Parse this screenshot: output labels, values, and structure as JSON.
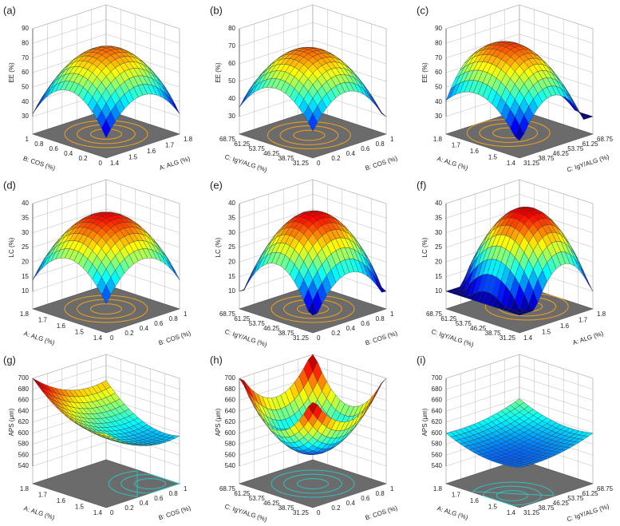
{
  "panels": [
    {
      "label": "(a)",
      "z_label": "EE (%)",
      "z_ticks": [
        "30",
        "40",
        "50",
        "60",
        "70",
        "80",
        "90"
      ],
      "left_label": "B: COS (%)",
      "left_ticks": [
        "1",
        "0.8",
        "0.6",
        "0.4",
        "0.2",
        "0"
      ],
      "right_label": "A: ALG (%)",
      "right_ticks": [
        "1.4",
        "1.5",
        "1.6",
        "1.7",
        "1.8"
      ]
    },
    {
      "label": "(b)",
      "z_label": "EE (%)",
      "z_ticks": [
        "30",
        "40",
        "50",
        "60",
        "70",
        "80"
      ],
      "left_label": "C: IgY/ALG (%)",
      "left_ticks": [
        "68.75",
        "61.25",
        "53.75",
        "46.25",
        "38.75",
        "31.25"
      ],
      "right_label": "B: COS (%)",
      "right_ticks": [
        "0",
        "0.2",
        "0.4",
        "0.6",
        "0.8",
        "1"
      ]
    },
    {
      "label": "(c)",
      "z_label": "EE (%)",
      "z_ticks": [
        "30",
        "40",
        "50",
        "60",
        "70",
        "80",
        "90"
      ],
      "left_label": "A: ALG (%)",
      "left_ticks": [
        "1.8",
        "1.7",
        "1.6",
        "1.5",
        "1.4"
      ],
      "right_label": "C: IgY/ALG (%)",
      "right_ticks": [
        "31.25",
        "38.75",
        "46.25",
        "53.75",
        "61.25",
        "68.75"
      ]
    },
    {
      "label": "(d)",
      "z_label": "LC (%)",
      "z_ticks": [
        "10",
        "15",
        "20",
        "25",
        "30",
        "35",
        "40"
      ],
      "left_label": "A: ALG (%)",
      "left_ticks": [
        "1.8",
        "1.7",
        "1.6",
        "1.5",
        "1.4"
      ],
      "right_label": "B: COS (%)",
      "right_ticks": [
        "0",
        "0.2",
        "0.4",
        "0.6",
        "0.8",
        "1"
      ]
    },
    {
      "label": "(e)",
      "z_label": "LC (%)",
      "z_ticks": [
        "10",
        "15",
        "20",
        "25",
        "30",
        "35",
        "40"
      ],
      "left_label": "C: IgY/ALG (%)",
      "left_ticks": [
        "68.75",
        "61.25",
        "53.75",
        "46.25",
        "38.75",
        "31.25"
      ],
      "right_label": "B: COS (%)",
      "right_ticks": [
        "0",
        "0.2",
        "0.4",
        "0.6",
        "0.8",
        "1"
      ]
    },
    {
      "label": "(f)",
      "z_label": "LC (%)",
      "z_ticks": [
        "10",
        "15",
        "20",
        "25",
        "30",
        "35",
        "40"
      ],
      "left_label": "C: IgY/ALG (%)",
      "left_ticks": [
        "68.75",
        "61.25",
        "53.75",
        "46.25",
        "38.75",
        "31.25"
      ],
      "right_label": "A: ALG (%)",
      "right_ticks": [
        "1.4",
        "1.5",
        "1.6",
        "1.7",
        "1.8"
      ]
    },
    {
      "label": "(g)",
      "z_label": "APS (μm)",
      "z_ticks": [
        "540",
        "560",
        "580",
        "600",
        "620",
        "640",
        "660",
        "680",
        "700"
      ],
      "left_label": "A: ALG (%)",
      "left_ticks": [
        "1.8",
        "1.7",
        "1.6",
        "1.5",
        "1.4"
      ],
      "right_label": "B: COS (%)",
      "right_ticks": [
        "0",
        "0.2",
        "0.4",
        "0.6",
        "0.8",
        "1"
      ]
    },
    {
      "label": "(h)",
      "z_label": "APS (μm)",
      "z_ticks": [
        "540",
        "560",
        "580",
        "600",
        "620",
        "640",
        "660",
        "680",
        "700"
      ],
      "left_label": "C: IgY/ALG (%)",
      "left_ticks": [
        "68.75",
        "61.25",
        "53.75",
        "46.25",
        "38.75",
        "31.25"
      ],
      "right_label": "B: COS (%)",
      "right_ticks": [
        "0",
        "0.2",
        "0.4",
        "0.6",
        "0.8",
        "1"
      ]
    },
    {
      "label": "(i)",
      "z_label": "APS (μm)",
      "z_ticks": [
        "540",
        "560",
        "580",
        "600",
        "620",
        "640",
        "660",
        "680",
        "700"
      ],
      "left_label": "A: ALG (%)",
      "left_ticks": [
        "1.8",
        "1.7",
        "1.6",
        "1.5",
        "1.4"
      ],
      "right_label": "C: IgY/ALG (%)",
      "right_ticks": [
        "31.25",
        "38.75",
        "46.25",
        "53.75",
        "61.25",
        "68.75"
      ]
    }
  ]
}
